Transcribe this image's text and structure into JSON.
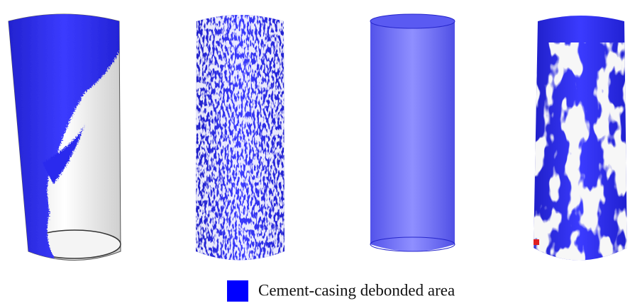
{
  "legend": {
    "label": "Cement-casing debonded area"
  }
}
